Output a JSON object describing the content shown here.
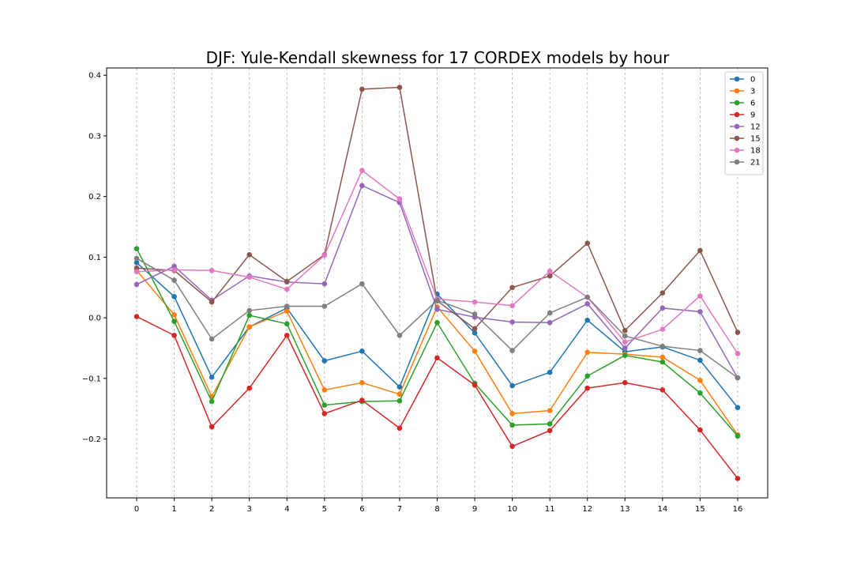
{
  "chart_data": {
    "type": "line",
    "title": "DJF: Yule-Kendall skewness for 17 CORDEX models by hour",
    "xlabel": "",
    "ylabel": "",
    "x": [
      0,
      1,
      2,
      3,
      4,
      5,
      6,
      7,
      8,
      9,
      10,
      11,
      12,
      13,
      14,
      15,
      16
    ],
    "xlim": [
      -0.8,
      16.8
    ],
    "ylim": [
      -0.297,
      0.412
    ],
    "yticks": [
      -0.2,
      -0.1,
      0.0,
      0.1,
      0.2,
      0.3,
      0.4
    ],
    "ytick_labels": [
      "−0.2",
      "−0.1",
      "0.0",
      "0.1",
      "0.2",
      "0.3",
      "0.4"
    ],
    "xgrid": true,
    "ygrid": false,
    "legend_position": "top-right",
    "series": [
      {
        "name": "0",
        "color": "#1f77b4",
        "values": [
          0.091,
          0.035,
          -0.098,
          -0.015,
          0.016,
          -0.071,
          -0.055,
          -0.114,
          0.039,
          -0.025,
          -0.112,
          -0.09,
          -0.004,
          -0.056,
          -0.048,
          -0.07,
          -0.148
        ]
      },
      {
        "name": "3",
        "color": "#ff7f0e",
        "values": [
          0.078,
          0.005,
          -0.13,
          -0.015,
          0.011,
          -0.119,
          -0.107,
          -0.126,
          0.018,
          -0.055,
          -0.158,
          -0.153,
          -0.057,
          -0.06,
          -0.065,
          -0.103,
          -0.193
        ]
      },
      {
        "name": "6",
        "color": "#2ca02c",
        "values": [
          0.114,
          -0.006,
          -0.138,
          0.004,
          -0.01,
          -0.144,
          -0.138,
          -0.137,
          -0.008,
          -0.108,
          -0.177,
          -0.175,
          -0.096,
          -0.062,
          -0.073,
          -0.124,
          -0.195
        ]
      },
      {
        "name": "9",
        "color": "#d62728",
        "values": [
          0.002,
          -0.029,
          -0.18,
          -0.116,
          -0.029,
          -0.158,
          -0.136,
          -0.182,
          -0.066,
          -0.111,
          -0.212,
          -0.186,
          -0.116,
          -0.107,
          -0.119,
          -0.185,
          -0.265
        ]
      },
      {
        "name": "12",
        "color": "#9467bd",
        "values": [
          0.055,
          0.085,
          0.029,
          0.069,
          0.059,
          0.056,
          0.218,
          0.19,
          0.014,
          0.001,
          -0.007,
          -0.008,
          0.023,
          -0.05,
          0.016,
          0.01,
          -0.099
        ]
      },
      {
        "name": "15",
        "color": "#8c564b",
        "values": [
          0.082,
          0.078,
          0.026,
          0.104,
          0.06,
          0.104,
          0.377,
          0.38,
          0.028,
          -0.018,
          0.05,
          0.069,
          0.123,
          -0.021,
          0.041,
          0.111,
          -0.024
        ]
      },
      {
        "name": "18",
        "color": "#e377c2",
        "values": [
          0.076,
          0.079,
          0.078,
          0.067,
          0.047,
          0.103,
          0.243,
          0.196,
          0.031,
          0.026,
          0.02,
          0.077,
          0.034,
          -0.04,
          -0.019,
          0.036,
          -0.059
        ]
      },
      {
        "name": "21",
        "color": "#7f7f7f",
        "values": [
          0.098,
          0.062,
          -0.035,
          0.012,
          0.019,
          0.019,
          0.056,
          -0.029,
          0.029,
          0.006,
          -0.054,
          0.008,
          0.034,
          -0.03,
          -0.047,
          -0.054,
          -0.099
        ]
      }
    ]
  }
}
